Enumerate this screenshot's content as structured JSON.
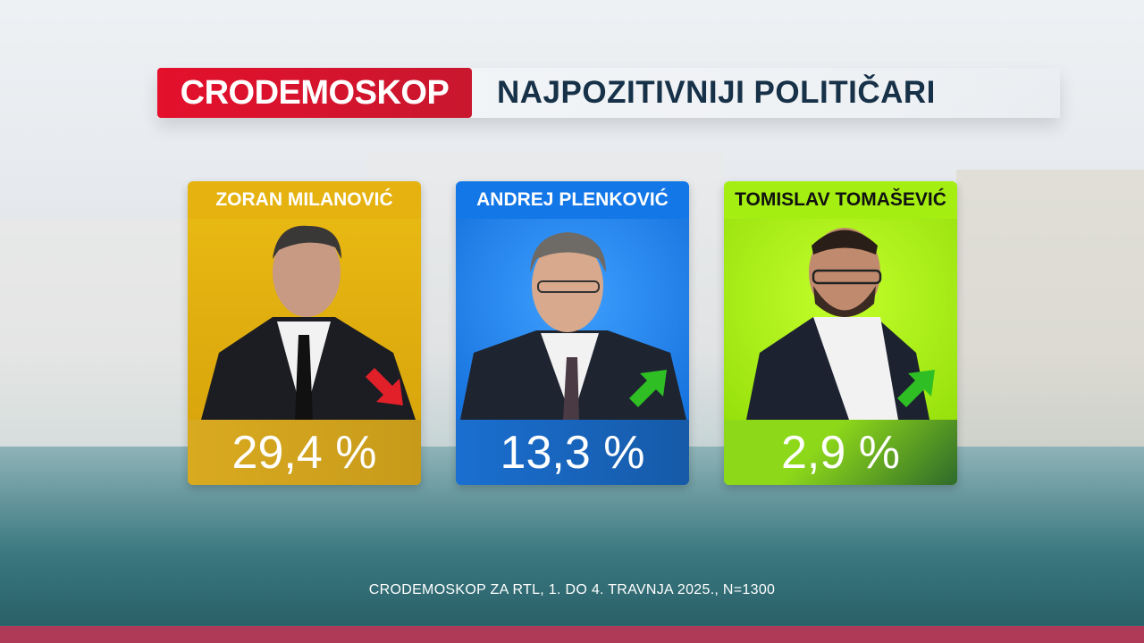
{
  "header": {
    "brand": "CRODEMOSKOP",
    "title": "NAJPOZITIVNIJI POLITIČARI"
  },
  "colors": {
    "brand": "#e4102c",
    "title_text": "#163148",
    "bottom_bar": "#ae3a58"
  },
  "politicians": [
    {
      "name": "ZORAN MILANOVIĆ",
      "value": "29,4 %",
      "trend": "down",
      "trend_icon": "arrow-down-right-icon",
      "color": "#e5b20f",
      "trend_color": "#e2202a"
    },
    {
      "name": "ANDREJ PLENKOVIĆ",
      "value": "13,3 %",
      "trend": "up",
      "trend_icon": "arrow-up-right-icon",
      "color": "#1377e8",
      "trend_color": "#2fbf24"
    },
    {
      "name": "TOMISLAV TOMAŠEVIĆ",
      "value": "2,9 %",
      "trend": "up",
      "trend_icon": "arrow-up-right-icon",
      "color": "#a4ee12",
      "trend_color": "#2fbf24"
    }
  ],
  "footer": "CRODEMOSKOP ZA RTL, 1. DO 4. TRAVNJA 2025., N=1300"
}
